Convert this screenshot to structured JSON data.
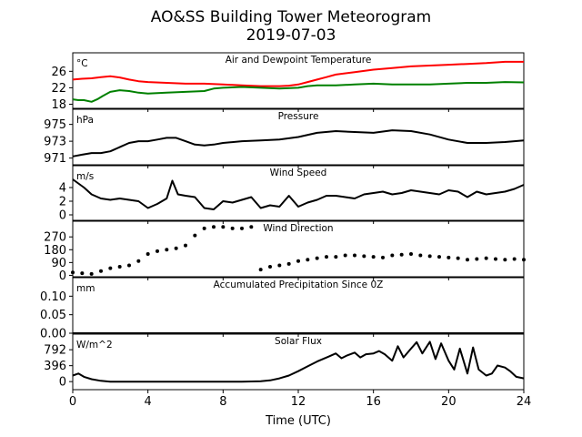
{
  "title": "AO&SS Building Tower Meteorogram",
  "subtitle": "2019-07-03",
  "xlabel": "Time (UTC)",
  "x_ticks": [
    "0",
    "4",
    "8",
    "12",
    "16",
    "20",
    "24"
  ],
  "chart_data": [
    {
      "type": "line",
      "title": "Air and Dewpoint Temperature",
      "unit": "°C",
      "ylim": [
        17,
        30.5
      ],
      "y_ticks": [
        18,
        22,
        26
      ],
      "y_tick_labels": [
        "18",
        "22",
        "26"
      ],
      "x_range": [
        0,
        24
      ],
      "series": [
        {
          "color": "#ff0000",
          "x": [
            0,
            0.5,
            1,
            1.5,
            2,
            2.5,
            3,
            3.5,
            4,
            5,
            6,
            7,
            8,
            9,
            10,
            11,
            11.5,
            12,
            12.5,
            13,
            13.5,
            14,
            15,
            16,
            17,
            18,
            19,
            20,
            21,
            22,
            23,
            24
          ],
          "values": [
            24.0,
            24.2,
            24.3,
            24.6,
            24.8,
            24.5,
            24.0,
            23.6,
            23.4,
            23.2,
            23.0,
            23.0,
            22.8,
            22.6,
            22.4,
            22.4,
            22.5,
            22.8,
            23.4,
            24.0,
            24.6,
            25.2,
            25.8,
            26.4,
            26.8,
            27.2,
            27.4,
            27.6,
            27.8,
            28.0,
            28.3,
            28.3
          ]
        },
        {
          "color": "#008000",
          "x": [
            0,
            0.3,
            0.6,
            1.0,
            1.3,
            1.6,
            2.0,
            2.5,
            3,
            3.5,
            4,
            5,
            6,
            7,
            7.5,
            8,
            9,
            10,
            11,
            12,
            12.5,
            13,
            14,
            15,
            16,
            17,
            18,
            19,
            20,
            21,
            22,
            23,
            24
          ],
          "values": [
            19.2,
            19.0,
            19.0,
            18.6,
            19.2,
            20.0,
            21.0,
            21.4,
            21.2,
            20.8,
            20.6,
            20.8,
            21.0,
            21.2,
            21.8,
            22.0,
            22.2,
            22.0,
            21.8,
            22.0,
            22.4,
            22.6,
            22.6,
            22.8,
            23.0,
            22.8,
            22.8,
            22.8,
            23.0,
            23.2,
            23.2,
            23.4,
            23.3
          ]
        }
      ]
    },
    {
      "type": "line",
      "title": "Pressure",
      "unit": "hPa",
      "ylim": [
        970.2,
        976.8
      ],
      "y_ticks": [
        971,
        973,
        975
      ],
      "y_tick_labels": [
        "971",
        "973",
        "975"
      ],
      "x_range": [
        0,
        24
      ],
      "series": [
        {
          "color": "#000000",
          "x": [
            0,
            0.5,
            1,
            1.5,
            2,
            2.5,
            3,
            3.5,
            4,
            4.5,
            5,
            5.5,
            6,
            6.5,
            7,
            7.5,
            8,
            9,
            10,
            11,
            12,
            13,
            14,
            15,
            16,
            17,
            18,
            19,
            20,
            21,
            22,
            23,
            23.5,
            24
          ],
          "values": [
            971.2,
            971.4,
            971.6,
            971.6,
            971.8,
            972.3,
            972.8,
            973.0,
            973.0,
            973.2,
            973.4,
            973.4,
            973.0,
            972.6,
            972.5,
            972.6,
            972.8,
            973.0,
            973.1,
            973.2,
            973.5,
            974.0,
            974.2,
            974.1,
            974.0,
            974.3,
            974.2,
            973.8,
            973.2,
            972.8,
            972.8,
            972.9,
            973.0,
            973.1
          ]
        }
      ]
    },
    {
      "type": "line",
      "title": "Wind Speed",
      "unit": "m/s",
      "ylim": [
        -0.8,
        7.2
      ],
      "y_ticks": [
        0,
        2,
        4
      ],
      "y_tick_labels": [
        "0",
        "2",
        "4"
      ],
      "x_range": [
        0,
        24
      ],
      "series": [
        {
          "color": "#000000",
          "x": [
            0,
            0.3,
            0.6,
            1,
            1.5,
            2,
            2.5,
            3,
            3.5,
            4,
            4.5,
            5,
            5.3,
            5.6,
            6,
            6.5,
            7,
            7.5,
            8,
            8.5,
            9,
            9.5,
            10,
            10.5,
            11,
            11.5,
            12,
            12.5,
            13,
            13.5,
            14,
            14.5,
            15,
            15.5,
            16,
            16.5,
            17,
            17.5,
            18,
            18.5,
            19,
            19.5,
            20,
            20.5,
            21,
            21.5,
            22,
            22.5,
            23,
            23.5,
            24
          ],
          "values": [
            5.2,
            4.6,
            4.0,
            3.0,
            2.4,
            2.2,
            2.4,
            2.2,
            2.0,
            1.0,
            1.6,
            2.4,
            5.0,
            3.0,
            2.8,
            2.6,
            1.0,
            0.8,
            2.0,
            1.8,
            2.2,
            2.6,
            1.0,
            1.4,
            1.2,
            2.8,
            1.2,
            1.8,
            2.2,
            2.8,
            2.8,
            2.6,
            2.4,
            3.0,
            3.2,
            3.4,
            3.0,
            3.2,
            3.6,
            3.4,
            3.2,
            3.0,
            3.6,
            3.4,
            2.6,
            3.4,
            3.0,
            3.2,
            3.4,
            3.8,
            4.4
          ]
        }
      ]
    },
    {
      "type": "scatter",
      "title": "Wind Direction",
      "unit": "",
      "ylim": [
        -10,
        380
      ],
      "y_ticks": [
        0,
        90,
        180,
        270
      ],
      "y_tick_labels": [
        "0",
        "90",
        "180",
        "270"
      ],
      "x_range": [
        0,
        24
      ],
      "series": [
        {
          "color": "#000000",
          "x": [
            0,
            0.5,
            1,
            1.5,
            2,
            2.5,
            3,
            3.5,
            4,
            4.5,
            5,
            5.5,
            6,
            6.5,
            7,
            7.5,
            8,
            8.5,
            9,
            9.5,
            10,
            10.5,
            11,
            11.5,
            12,
            12.5,
            13,
            13.5,
            14,
            14.5,
            15,
            15.5,
            16,
            16.5,
            17,
            17.5,
            18,
            18.5,
            19,
            19.5,
            20,
            20.5,
            21,
            21.5,
            22,
            22.5,
            23,
            23.5,
            24
          ],
          "values": [
            20,
            15,
            10,
            30,
            50,
            60,
            70,
            100,
            150,
            170,
            180,
            190,
            210,
            280,
            330,
            340,
            340,
            330,
            330,
            340,
            40,
            60,
            70,
            80,
            100,
            110,
            120,
            130,
            130,
            140,
            140,
            135,
            130,
            125,
            140,
            145,
            150,
            140,
            135,
            130,
            125,
            120,
            110,
            115,
            120,
            115,
            110,
            115,
            110
          ]
        }
      ]
    },
    {
      "type": "line",
      "title": "Accumulated Precipitation Since 0Z",
      "unit": "mm",
      "ylim": [
        0,
        0.15
      ],
      "y_ticks": [
        0,
        0.05,
        0.1
      ],
      "y_tick_labels": [
        "0.00",
        "0.05",
        "0.10"
      ],
      "x_range": [
        0,
        24
      ],
      "series": [
        {
          "color": "#000000",
          "x": [
            0,
            24
          ],
          "values": [
            0,
            0
          ]
        }
      ]
    },
    {
      "type": "line",
      "title": "Solar Flux",
      "unit": "W/m^2",
      "ylim": [
        -200,
        1180
      ],
      "y_ticks": [
        0,
        396,
        792
      ],
      "y_tick_labels": [
        "0",
        "396",
        "792"
      ],
      "x_range": [
        0,
        24
      ],
      "series": [
        {
          "color": "#000000",
          "x": [
            0,
            0.3,
            0.6,
            1,
            1.5,
            2,
            3,
            4,
            6,
            8,
            9,
            10,
            10.5,
            11,
            11.5,
            12,
            12.5,
            13,
            13.3,
            13.6,
            14,
            14.3,
            14.6,
            15,
            15.3,
            15.6,
            16,
            16.3,
            16.6,
            17,
            17.3,
            17.6,
            18,
            18.3,
            18.6,
            19,
            19.3,
            19.6,
            20,
            20.3,
            20.6,
            21,
            21.3,
            21.6,
            22,
            22.3,
            22.6,
            23,
            23.3,
            23.6,
            24
          ],
          "values": [
            150,
            200,
            120,
            60,
            20,
            0,
            0,
            0,
            0,
            0,
            0,
            10,
            30,
            80,
            150,
            260,
            380,
            500,
            560,
            620,
            700,
            580,
            650,
            720,
            600,
            680,
            700,
            760,
            680,
            520,
            880,
            600,
            820,
            980,
            700,
            990,
            560,
            950,
            520,
            300,
            820,
            200,
            850,
            300,
            150,
            200,
            400,
            350,
            250,
            120,
            80
          ]
        }
      ]
    }
  ]
}
